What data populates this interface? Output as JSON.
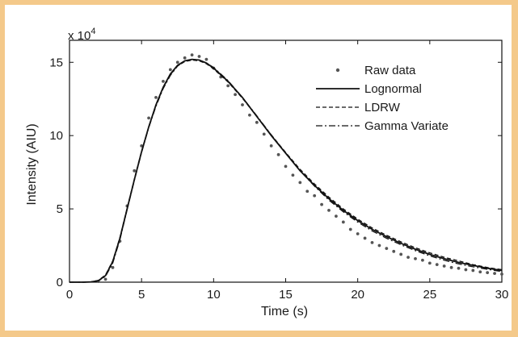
{
  "chart_data": {
    "type": "scatter",
    "title": "",
    "xlabel": "Time (s)",
    "ylabel": "Intensity (AIU)",
    "y_multiplier_label": "x 10",
    "y_multiplier_exp": "4",
    "xlim": [
      0,
      30
    ],
    "ylim": [
      0,
      16.5
    ],
    "xticks": [
      "0",
      "5",
      "10",
      "15",
      "20",
      "25",
      "30"
    ],
    "yticks": [
      "0",
      "5",
      "10",
      "15"
    ],
    "grid": false,
    "legend_position": "top-right",
    "series": [
      {
        "name": "Raw data",
        "kind": "points",
        "color": "#555555",
        "x": [
          2.0,
          2.5,
          3.0,
          3.5,
          4.0,
          4.5,
          5.0,
          5.5,
          6.0,
          6.5,
          7.0,
          7.5,
          8.0,
          8.5,
          9.0,
          9.5,
          10.0,
          10.5,
          11.0,
          11.5,
          12.0,
          12.5,
          13.0,
          13.5,
          14.0,
          14.5,
          15.0,
          15.5,
          16.0,
          16.5,
          17.0,
          17.5,
          18.0,
          18.5,
          19.0,
          19.5,
          20.0,
          20.5,
          21.0,
          21.5,
          22.0,
          22.5,
          23.0,
          23.5,
          24.0,
          24.5,
          25.0,
          25.5,
          26.0,
          26.5,
          27.0,
          27.5,
          28.0,
          28.5,
          29.0,
          29.5,
          30.0
        ],
        "y": [
          0.05,
          0.2,
          1.0,
          2.8,
          5.2,
          7.6,
          9.3,
          11.2,
          12.6,
          13.7,
          14.5,
          15.0,
          15.3,
          15.5,
          15.4,
          15.2,
          14.6,
          14.0,
          13.4,
          12.8,
          12.1,
          11.4,
          10.9,
          10.1,
          9.3,
          8.7,
          7.9,
          7.3,
          6.8,
          6.2,
          5.9,
          5.3,
          4.9,
          4.5,
          4.1,
          3.6,
          3.3,
          3.0,
          2.7,
          2.5,
          2.3,
          2.1,
          1.9,
          1.7,
          1.6,
          1.5,
          1.3,
          1.2,
          1.1,
          1.0,
          0.95,
          0.85,
          0.8,
          0.7,
          0.65,
          0.6,
          0.55
        ]
      },
      {
        "name": "Lognormal",
        "kind": "line",
        "dash": "",
        "color": "#111111",
        "x": [
          0,
          1,
          1.5,
          2,
          2.5,
          3,
          3.5,
          4,
          4.5,
          5,
          5.5,
          6,
          6.5,
          7,
          7.5,
          8,
          8.5,
          9,
          9.5,
          10,
          11,
          12,
          13,
          14,
          15,
          16,
          17,
          18,
          19,
          20,
          21,
          22,
          23,
          24,
          25,
          26,
          27,
          28,
          29,
          30
        ],
        "y": [
          0,
          0,
          0.02,
          0.1,
          0.45,
          1.4,
          3.0,
          5.0,
          7.0,
          8.9,
          10.6,
          12.1,
          13.3,
          14.2,
          14.8,
          15.1,
          15.2,
          15.15,
          14.95,
          14.6,
          13.7,
          12.6,
          11.3,
          10.0,
          8.8,
          7.6,
          6.6,
          5.7,
          4.9,
          4.2,
          3.6,
          3.1,
          2.65,
          2.25,
          1.9,
          1.6,
          1.35,
          1.15,
          0.95,
          0.8
        ]
      },
      {
        "name": "LDRW",
        "kind": "line",
        "dash": "5,3",
        "color": "#111111",
        "x": [
          0,
          1,
          1.5,
          2,
          2.5,
          3,
          3.5,
          4,
          4.5,
          5,
          5.5,
          6,
          6.5,
          7,
          7.5,
          8,
          8.5,
          9,
          9.5,
          10,
          11,
          12,
          13,
          14,
          15,
          16,
          17,
          18,
          19,
          20,
          21,
          22,
          23,
          24,
          25,
          26,
          27,
          28,
          29,
          30
        ],
        "y": [
          0,
          0,
          0.03,
          0.12,
          0.5,
          1.45,
          3.05,
          5.05,
          7.05,
          8.95,
          10.6,
          12.05,
          13.25,
          14.15,
          14.75,
          15.05,
          15.15,
          15.1,
          14.9,
          14.55,
          13.65,
          12.55,
          11.3,
          10.05,
          8.85,
          7.7,
          6.7,
          5.8,
          5.0,
          4.3,
          3.7,
          3.2,
          2.75,
          2.35,
          2.0,
          1.7,
          1.45,
          1.2,
          1.0,
          0.85
        ]
      },
      {
        "name": "Gamma Variate",
        "kind": "line",
        "dash": "8,3,2,3",
        "color": "#111111",
        "x": [
          0,
          1,
          1.5,
          2,
          2.5,
          3,
          3.5,
          4,
          4.5,
          5,
          5.5,
          6,
          6.5,
          7,
          7.5,
          8,
          8.5,
          9,
          9.5,
          10,
          11,
          12,
          13,
          14,
          15,
          16,
          17,
          18,
          19,
          20,
          21,
          22,
          23,
          24,
          25,
          26,
          27,
          28,
          29,
          30
        ],
        "y": [
          0,
          0,
          0.02,
          0.08,
          0.4,
          1.3,
          2.9,
          4.95,
          6.95,
          8.85,
          10.55,
          12.0,
          13.2,
          14.1,
          14.75,
          15.1,
          15.2,
          15.15,
          14.95,
          14.65,
          13.75,
          12.6,
          11.35,
          10.05,
          8.8,
          7.6,
          6.55,
          5.6,
          4.8,
          4.1,
          3.5,
          3.0,
          2.55,
          2.15,
          1.8,
          1.5,
          1.25,
          1.05,
          0.88,
          0.72
        ]
      }
    ]
  }
}
